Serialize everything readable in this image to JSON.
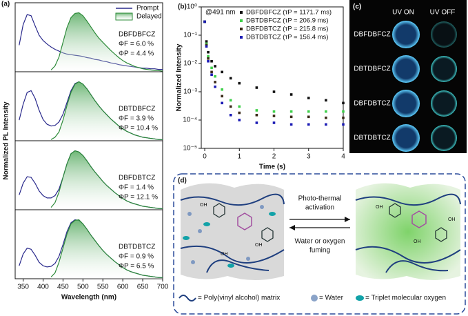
{
  "chart_data": [
    {
      "type": "line",
      "panel_label": "(a)",
      "ylabel": "Normalized PL Intensity",
      "legend": "upper right",
      "x": [
        340,
        350,
        360,
        370,
        380,
        390,
        400,
        410,
        420,
        430,
        440,
        450,
        460,
        470,
        480,
        490,
        500,
        510,
        520,
        530,
        540,
        550,
        560,
        570,
        580,
        590,
        600,
        610,
        620,
        630,
        640,
        650,
        660,
        670,
        680,
        690,
        700
      ],
      "xlim": [
        330,
        700
      ],
      "ylim": [
        0,
        1.1
      ],
      "annotations": [
        "DBFDBFCZ",
        "ΦF = 6.0 %",
        "ΦP = 4.4 %"
      ],
      "series": [
        {
          "name": "Prompt",
          "color": "#2a2a8c",
          "values": [
            0.45,
            0.8,
            0.97,
            0.95,
            0.78,
            0.62,
            0.53,
            0.47,
            0.42,
            0.38,
            0.35,
            0.32,
            0.3,
            0.29,
            0.28,
            0.27,
            0.26,
            0.24,
            0.23,
            0.21,
            0.2,
            0.18,
            0.17,
            0.15,
            0.14,
            0.12,
            0.11,
            0.1,
            0.09,
            0.08,
            0.07,
            0.06,
            0.06,
            0.05,
            0.05,
            0.04,
            0.04
          ]
        },
        {
          "name": "Delayed",
          "color": "#2e8b3a",
          "values": [
            null,
            null,
            null,
            null,
            null,
            null,
            null,
            null,
            0.03,
            0.1,
            0.25,
            0.5,
            0.75,
            0.92,
            0.99,
            1.0,
            0.95,
            0.86,
            0.76,
            0.66,
            0.57,
            0.5,
            0.43,
            0.36,
            0.3,
            0.24,
            0.19,
            0.15,
            0.12,
            0.09,
            0.07,
            0.05,
            0.04,
            0.03,
            0.02,
            0.02,
            0.01
          ]
        }
      ]
    },
    {
      "type": "line",
      "x": [
        340,
        350,
        360,
        370,
        380,
        390,
        400,
        410,
        420,
        430,
        440,
        450,
        460,
        470,
        480,
        490,
        500,
        510,
        520,
        530,
        540,
        550,
        560,
        570,
        580,
        590,
        600,
        610,
        620,
        630,
        640,
        650,
        660,
        670,
        680,
        690,
        700
      ],
      "xlim": [
        330,
        700
      ],
      "ylim": [
        0,
        1.1
      ],
      "annotations": [
        "DBTDBFCZ",
        "ΦF = 3.9 %",
        "ΦP = 10.4 %"
      ],
      "series": [
        {
          "color": "#2a2a8c",
          "values": [
            0.35,
            0.62,
            0.82,
            0.85,
            0.72,
            0.52,
            0.36,
            0.28,
            0.25,
            0.26,
            0.32,
            0.45,
            0.65,
            0.85,
            0.97,
            1.0,
            0.96,
            0.88,
            0.78,
            0.68,
            0.59,
            0.51,
            0.44,
            0.37,
            0.31,
            0.25,
            0.2,
            0.16,
            0.13,
            0.1,
            0.08,
            0.06,
            0.05,
            0.04,
            0.03,
            0.02,
            0.02
          ]
        },
        {
          "color": "#2e8b3a",
          "values": [
            null,
            null,
            null,
            null,
            null,
            null,
            null,
            null,
            0.02,
            0.06,
            0.15,
            0.35,
            0.6,
            0.82,
            0.96,
            1.0,
            0.96,
            0.88,
            0.78,
            0.68,
            0.59,
            0.51,
            0.44,
            0.37,
            0.31,
            0.25,
            0.2,
            0.16,
            0.13,
            0.1,
            0.08,
            0.06,
            0.05,
            0.04,
            0.03,
            0.02,
            0.02
          ]
        }
      ]
    },
    {
      "type": "line",
      "x": [
        340,
        350,
        360,
        370,
        380,
        390,
        400,
        410,
        420,
        430,
        440,
        450,
        460,
        470,
        480,
        490,
        500,
        510,
        520,
        530,
        540,
        550,
        560,
        570,
        580,
        590,
        600,
        610,
        620,
        630,
        640,
        650,
        660,
        670,
        680,
        690,
        700
      ],
      "xlim": [
        330,
        700
      ],
      "ylim": [
        0,
        1.1
      ],
      "annotations": [
        "DBFDBTCZ",
        "ΦF = 1.4 %",
        "ΦP = 12.1 %"
      ],
      "series": [
        {
          "color": "#2a2a8c",
          "values": [
            0.25,
            0.45,
            0.56,
            0.55,
            0.45,
            0.32,
            0.24,
            0.2,
            0.2,
            0.24,
            0.35,
            0.55,
            0.78,
            0.95,
            1.0,
            0.98,
            0.92,
            0.83,
            0.73,
            0.64,
            0.56,
            0.48,
            0.41,
            0.35,
            0.29,
            0.24,
            0.19,
            0.15,
            0.12,
            0.1,
            0.08,
            0.06,
            0.05,
            0.04,
            0.03,
            0.02,
            0.02
          ]
        },
        {
          "color": "#2e8b3a",
          "values": [
            null,
            null,
            null,
            null,
            null,
            null,
            null,
            null,
            0.04,
            0.12,
            0.3,
            0.55,
            0.78,
            0.95,
            1.0,
            0.98,
            0.92,
            0.83,
            0.73,
            0.64,
            0.56,
            0.48,
            0.41,
            0.35,
            0.29,
            0.24,
            0.19,
            0.15,
            0.12,
            0.1,
            0.08,
            0.06,
            0.05,
            0.04,
            0.03,
            0.02,
            0.02
          ]
        }
      ]
    },
    {
      "type": "line",
      "xlabel": "Wavelength (nm)",
      "x": [
        340,
        350,
        360,
        370,
        380,
        390,
        400,
        410,
        420,
        430,
        440,
        450,
        460,
        470,
        480,
        490,
        500,
        510,
        520,
        530,
        540,
        550,
        560,
        570,
        580,
        590,
        600,
        610,
        620,
        630,
        640,
        650,
        660,
        670,
        680,
        690,
        700
      ],
      "xlim": [
        330,
        700
      ],
      "ylim": [
        0,
        1.1
      ],
      "xticks": [
        350,
        400,
        450,
        500,
        550,
        600,
        650,
        700
      ],
      "annotations": [
        "DBTDBTCZ",
        "ΦF = 0.9 %",
        "ΦP = 6.5 %"
      ],
      "series": [
        {
          "color": "#2a2a8c",
          "values": [
            0.22,
            0.42,
            0.52,
            0.5,
            0.4,
            0.28,
            0.22,
            0.2,
            0.21,
            0.26,
            0.38,
            0.58,
            0.8,
            0.95,
            1.0,
            0.99,
            0.93,
            0.84,
            0.74,
            0.65,
            0.56,
            0.48,
            0.41,
            0.35,
            0.29,
            0.24,
            0.19,
            0.15,
            0.12,
            0.1,
            0.08,
            0.06,
            0.05,
            0.04,
            0.03,
            0.02,
            0.02
          ]
        },
        {
          "color": "#2e8b3a",
          "values": [
            null,
            null,
            null,
            null,
            null,
            null,
            null,
            null,
            0.03,
            0.1,
            0.28,
            0.52,
            0.76,
            0.93,
            0.99,
            1.0,
            0.93,
            0.84,
            0.74,
            0.65,
            0.56,
            0.48,
            0.41,
            0.35,
            0.29,
            0.24,
            0.19,
            0.15,
            0.12,
            0.1,
            0.08,
            0.06,
            0.05,
            0.04,
            0.03,
            0.02,
            0.02
          ]
        }
      ]
    },
    {
      "type": "scatter",
      "panel_label": "(b)",
      "xlabel": "Time (s)",
      "ylabel": "Normalized Intensity",
      "annotations": [
        "@491 nm"
      ],
      "log_y": true,
      "legend": "upper right",
      "x": [
        0,
        0.05,
        0.1,
        0.2,
        0.3,
        0.5,
        0.75,
        1,
        1.5,
        2,
        2.5,
        3,
        3.5,
        4
      ],
      "xlim": [
        -0.1,
        4
      ],
      "xticks": [
        0,
        1,
        2,
        3,
        4
      ],
      "ylim": [
        1e-05,
        1
      ],
      "yticks": [
        {
          "value": 1e-05,
          "label": "10⁻⁵"
        },
        {
          "value": 0.0001,
          "label": "10⁻⁴"
        },
        {
          "value": 0.001,
          "label": "10⁻³"
        },
        {
          "value": 0.01,
          "label": "10⁻²"
        },
        {
          "value": 0.1,
          "label": "10⁻¹"
        },
        {
          "value": 1,
          "label": "10⁰"
        }
      ],
      "series": [
        {
          "name": "DBFDBFCZ (τP = 1171.7 ms)",
          "color": "#111111",
          "values": [
            0.3,
            0.06,
            0.025,
            0.012,
            0.008,
            0.005,
            0.003,
            0.002,
            0.0014,
            0.001,
            0.0008,
            0.0006,
            0.0005,
            0.0004
          ]
        },
        {
          "name": "DBTDBFCZ (τP = 206.9 ms)",
          "color": "#3fd04a",
          "values": [
            0.3,
            0.05,
            0.018,
            0.007,
            0.0035,
            0.0012,
            0.0005,
            0.0003,
            0.00022,
            0.0002,
            0.0002,
            0.0002,
            0.0002,
            0.0002
          ]
        },
        {
          "name": "DBFDBTCZ (τP = 215.8 ms)",
          "color": "#3a2a18",
          "values": [
            0.3,
            0.045,
            0.015,
            0.005,
            0.0022,
            0.0007,
            0.0003,
            0.00018,
            0.00015,
            0.00014,
            0.00013,
            0.00013,
            0.00012,
            0.00012
          ]
        },
        {
          "name": "DBTDBTCZ (τP = 156.4 ms)",
          "color": "#1a1ab4",
          "values": [
            0.3,
            0.04,
            0.012,
            0.004,
            0.0015,
            0.0004,
            0.00015,
            0.0001,
            8e-05,
            8e-05,
            7e-05,
            7e-05,
            7e-05,
            7e-05
          ]
        }
      ]
    }
  ],
  "photo": {
    "label": "(c)",
    "columns": [
      "UV ON",
      "UV OFF"
    ],
    "rows": [
      "DBFDBFCZ",
      "DBTDBFCZ",
      "DBFDBTCZ",
      "DBTDBTCZ"
    ]
  },
  "diagram": {
    "label": "(d)",
    "forward": [
      "Photo-thermal",
      "activation"
    ],
    "backward": [
      "Water or oxygen",
      "fuming"
    ],
    "oh": "OH",
    "legend": [
      "= Poly(vinyl alcohol) matrix",
      "= Water",
      "= Triplet molecular oxygen"
    ]
  }
}
